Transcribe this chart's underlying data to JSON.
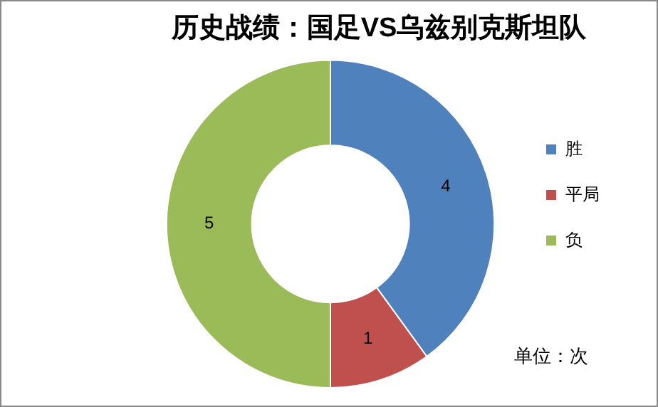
{
  "chart_data": {
    "type": "donut",
    "title": "历史战绩：国足VS乌兹别克斯坦队",
    "categories": [
      "胜",
      "平局",
      "负"
    ],
    "values": [
      4,
      1,
      5
    ],
    "colors": [
      "#4f81bd",
      "#c0504d",
      "#9bbb59"
    ],
    "data_labels": true,
    "legend": "right",
    "annotations": [
      "单位：次"
    ]
  }
}
